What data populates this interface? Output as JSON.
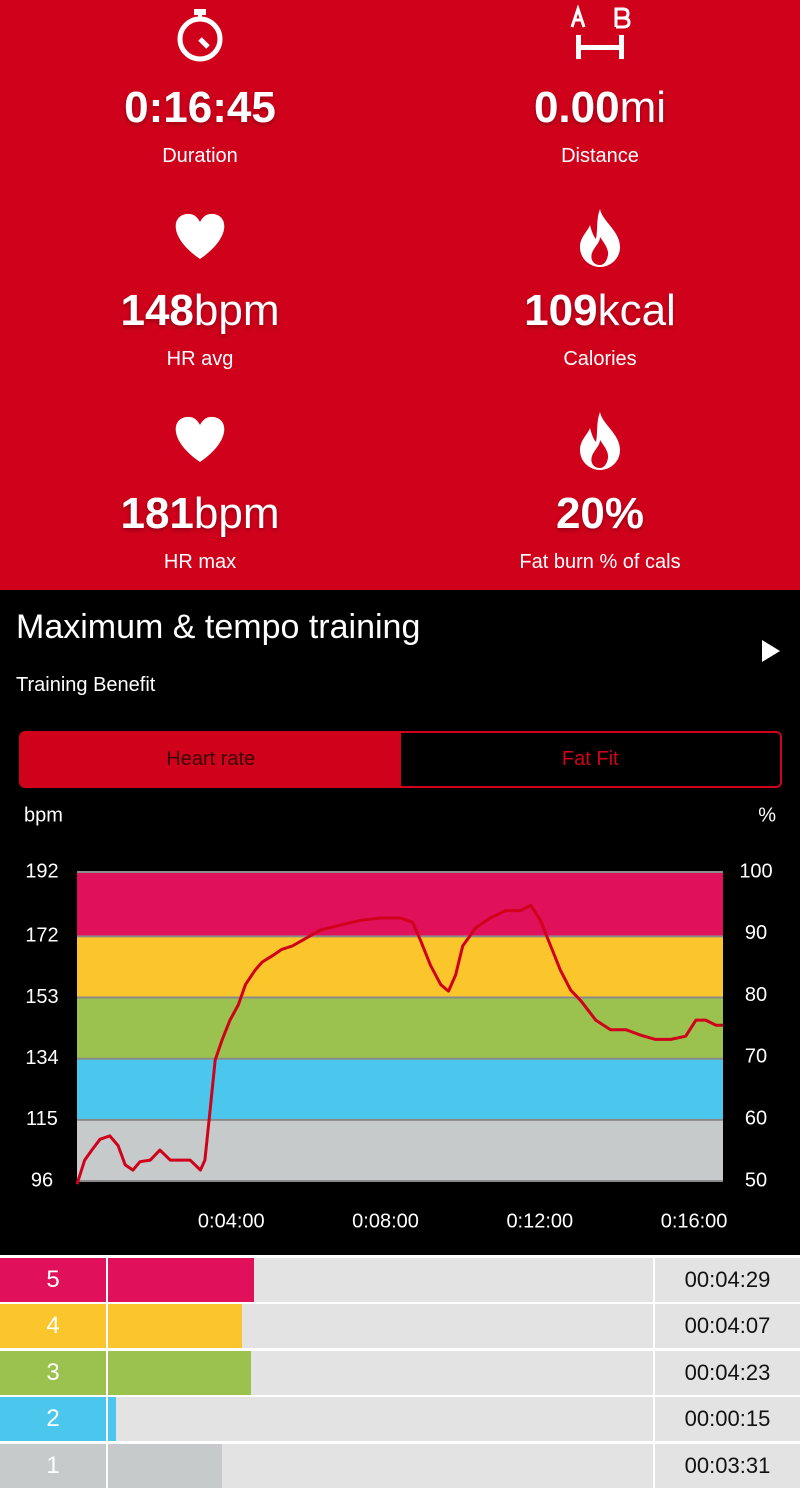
{
  "stats": [
    {
      "value": "0:16:45",
      "label": "Duration"
    },
    {
      "value": "0.00",
      "unit": "mi",
      "label": "Distance"
    },
    {
      "value": "148",
      "unit": "bpm",
      "label": "HR avg"
    },
    {
      "value": "109",
      "unit": "kcal",
      "label": "Calories"
    },
    {
      "value": "181",
      "unit": "bpm",
      "label": "HR max"
    },
    {
      "value": "20%",
      "label": "Fat burn % of cals"
    }
  ],
  "title": "Maximum & tempo training",
  "subtitle": "Training Benefit",
  "tabs": [
    "Heart rate",
    "Fat Fit"
  ],
  "chart_data": {
    "type": "line",
    "y_label": "bpm",
    "y2_label": "%",
    "x": [
      0,
      12,
      23,
      36,
      51,
      64,
      75,
      87,
      98,
      114,
      129,
      145,
      160,
      176,
      192,
      199,
      207,
      215,
      226,
      238,
      251,
      262,
      277,
      288,
      304,
      319,
      335,
      351,
      379,
      410,
      441,
      472,
      503,
      522,
      534,
      550,
      566,
      578,
      589,
      600,
      620,
      643,
      667,
      690,
      706,
      721,
      737,
      752,
      768,
      784,
      807,
      830,
      854,
      877,
      900,
      924,
      947,
      963,
      978,
      994,
      1005
    ],
    "series": [
      {
        "color": "#d0021b",
        "values": [
          95,
          102.5,
          105.6,
          109,
          110,
          107,
          101,
          99.4,
          102,
          102.5,
          105.6,
          102.5,
          102.5,
          102.5,
          99.4,
          102.5,
          118,
          133.6,
          140,
          146,
          150.7,
          157,
          161.5,
          164,
          166,
          168,
          169,
          170.8,
          174,
          175.5,
          177,
          177.7,
          177.7,
          176.4,
          171,
          163,
          157,
          155,
          160,
          169,
          174.6,
          177.7,
          180,
          180,
          181.7,
          177,
          169,
          161.5,
          155.3,
          152,
          146,
          143,
          143,
          141.3,
          140,
          140,
          141,
          146,
          146,
          144.4,
          144.4
        ]
      }
    ],
    "xlim": [
      0,
      1005
    ],
    "xticks": [
      {
        "value": 240,
        "label": "0:04:00"
      },
      {
        "value": 480,
        "label": "0:08:00"
      },
      {
        "value": 720,
        "label": "0:12:00"
      },
      {
        "value": 960,
        "label": "0:16:00"
      }
    ],
    "ylim": [
      96,
      192
    ],
    "yticks": [
      96,
      115,
      134,
      153,
      172,
      192
    ],
    "y2lim": [
      50,
      100
    ],
    "y2ticks": [
      50,
      60,
      70,
      80,
      90,
      100
    ],
    "grid": true,
    "zones": [
      {
        "label": "5",
        "color": "#e0105a",
        "duration": {
          "value": 269,
          "label": "00:04:29"
        }
      },
      {
        "label": "4",
        "color": "#fbc62b",
        "duration": {
          "value": 247,
          "label": "00:04:07"
        }
      },
      {
        "label": "3",
        "color": "#9bc14e",
        "duration": {
          "value": 263,
          "label": "00:04:23"
        }
      },
      {
        "label": "2",
        "color": "#4bc7ee",
        "duration": {
          "value": 15,
          "label": "00:00:15"
        }
      },
      {
        "label": "1",
        "color": "#c6cacb",
        "duration": {
          "value": 211,
          "label": "00:03:31"
        }
      }
    ]
  }
}
